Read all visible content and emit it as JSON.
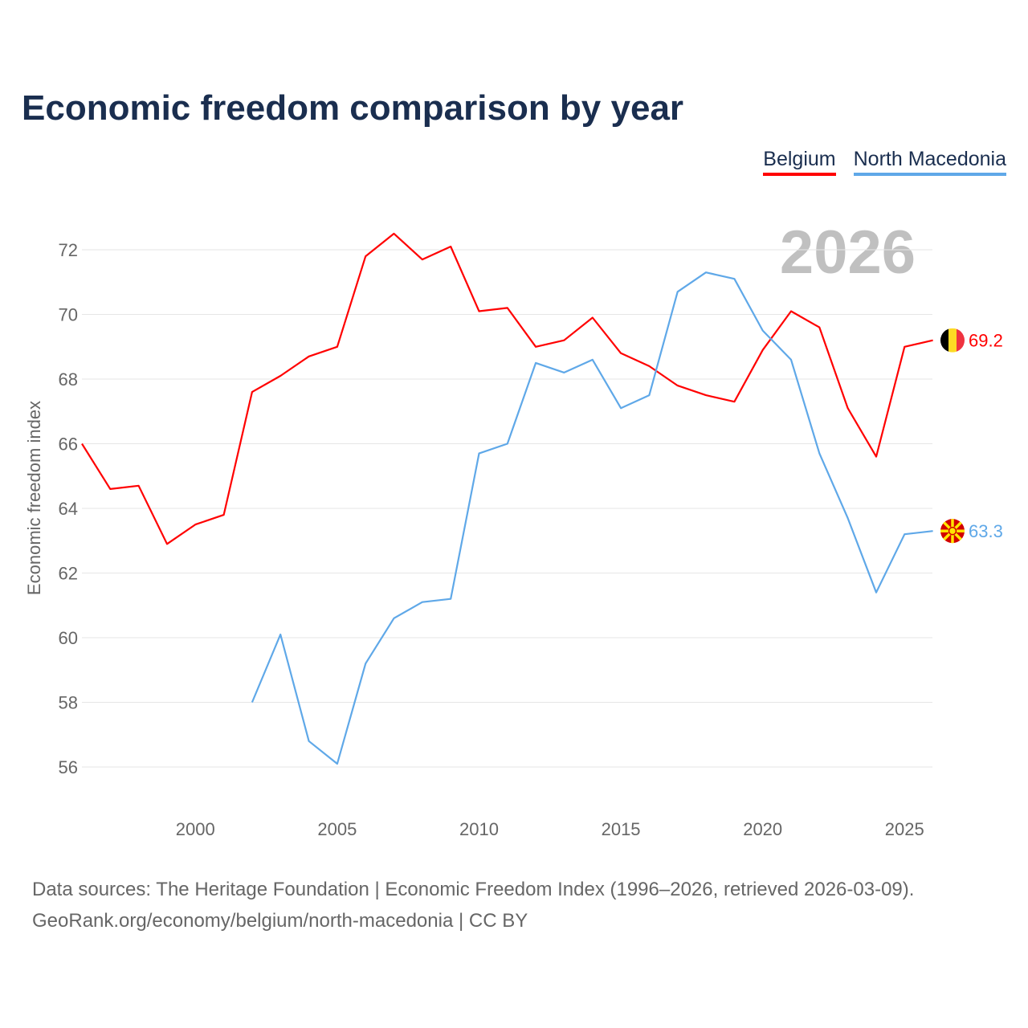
{
  "chart_data": {
    "type": "line",
    "title": "Economic freedom comparison by year",
    "ylabel": "Economic freedom index",
    "xlabel": "",
    "watermark_year": "2026",
    "xlim": [
      1996,
      2026
    ],
    "ylim": [
      55,
      73
    ],
    "x_ticks": [
      2000,
      2005,
      2010,
      2015,
      2020,
      2025
    ],
    "y_ticks": [
      56,
      58,
      60,
      62,
      64,
      66,
      68,
      70,
      72
    ],
    "grid": true,
    "legend_position": "top-right",
    "series": [
      {
        "name": "Belgium",
        "color": "#ff0000",
        "end_label": "69.2",
        "x_start": 1996,
        "values": [
          66.0,
          64.6,
          64.7,
          62.9,
          63.5,
          63.8,
          67.6,
          68.1,
          68.7,
          69.0,
          71.8,
          72.5,
          71.7,
          72.1,
          70.1,
          70.2,
          69.0,
          69.2,
          69.9,
          68.8,
          68.4,
          67.8,
          67.5,
          67.3,
          68.9,
          70.1,
          69.6,
          67.1,
          65.6,
          69.0,
          69.2
        ]
      },
      {
        "name": "North Macedonia",
        "color": "#5fa8e8",
        "end_label": "63.3",
        "x_start": 2002,
        "values": [
          58.0,
          60.1,
          56.8,
          56.1,
          59.2,
          60.6,
          61.1,
          61.2,
          65.7,
          66.0,
          68.5,
          68.2,
          68.6,
          67.1,
          67.5,
          70.7,
          71.3,
          71.1,
          69.5,
          68.6,
          65.7,
          63.7,
          61.4,
          63.2,
          63.3
        ]
      }
    ]
  },
  "source": {
    "line1": "Data sources: The Heritage Foundation | Economic Freedom Index (1996–2026, retrieved 2026-03-09).",
    "line2": "GeoRank.org/economy/belgium/north-macedonia | CC BY"
  }
}
